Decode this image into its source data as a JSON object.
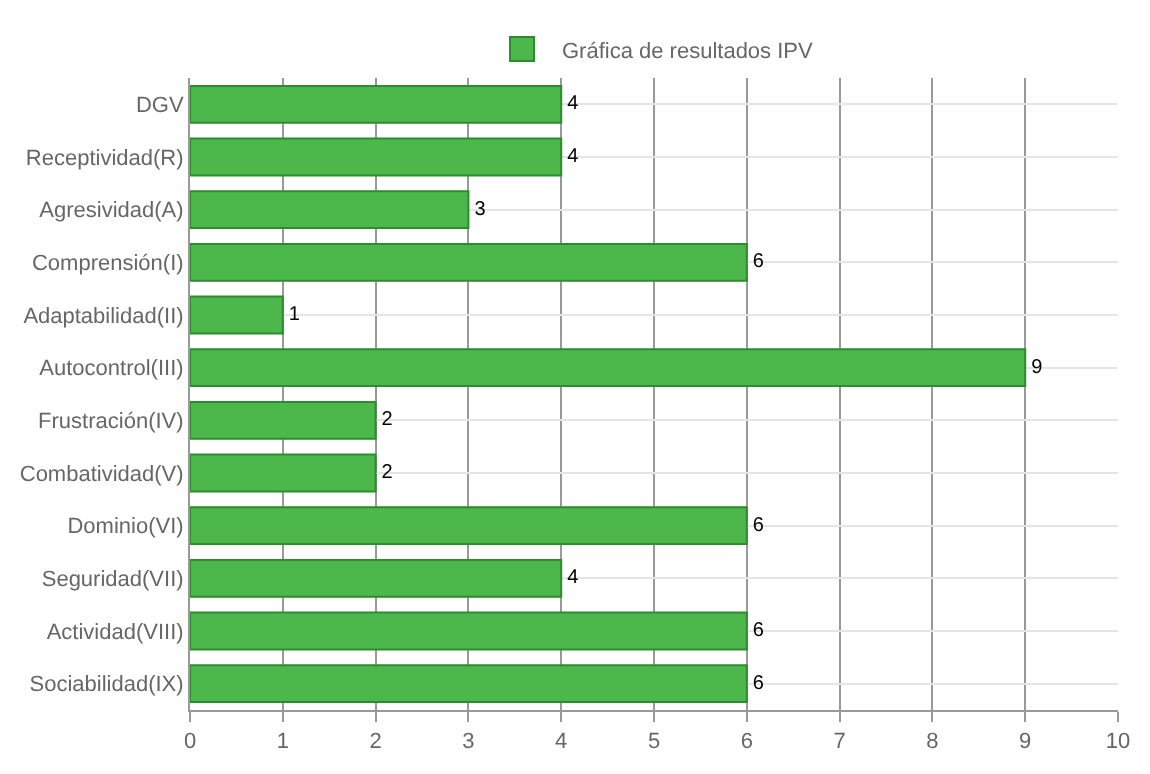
{
  "chart_data": {
    "type": "bar",
    "orientation": "horizontal",
    "categories": [
      "DGV",
      "Receptividad(R)",
      "Agresividad(A)",
      "Comprensión(I)",
      "Adaptabilidad(II)",
      "Autocontrol(III)",
      "Frustración(IV)",
      "Combatividad(V)",
      "Dominio(VI)",
      "Seguridad(VII)",
      "Actividad(VIII)",
      "Sociabilidad(IX)"
    ],
    "series": [
      {
        "name": "Gráfica de resultados IPV",
        "color": "#4cb84c",
        "values": [
          4,
          4,
          3,
          6,
          1,
          9,
          2,
          2,
          6,
          4,
          6,
          6
        ]
      }
    ],
    "xlim": [
      0,
      10
    ],
    "xticks": [
      0,
      1,
      2,
      3,
      4,
      5,
      6,
      7,
      8,
      9,
      10
    ],
    "grid": true,
    "legend": "top",
    "data_labels": true
  }
}
